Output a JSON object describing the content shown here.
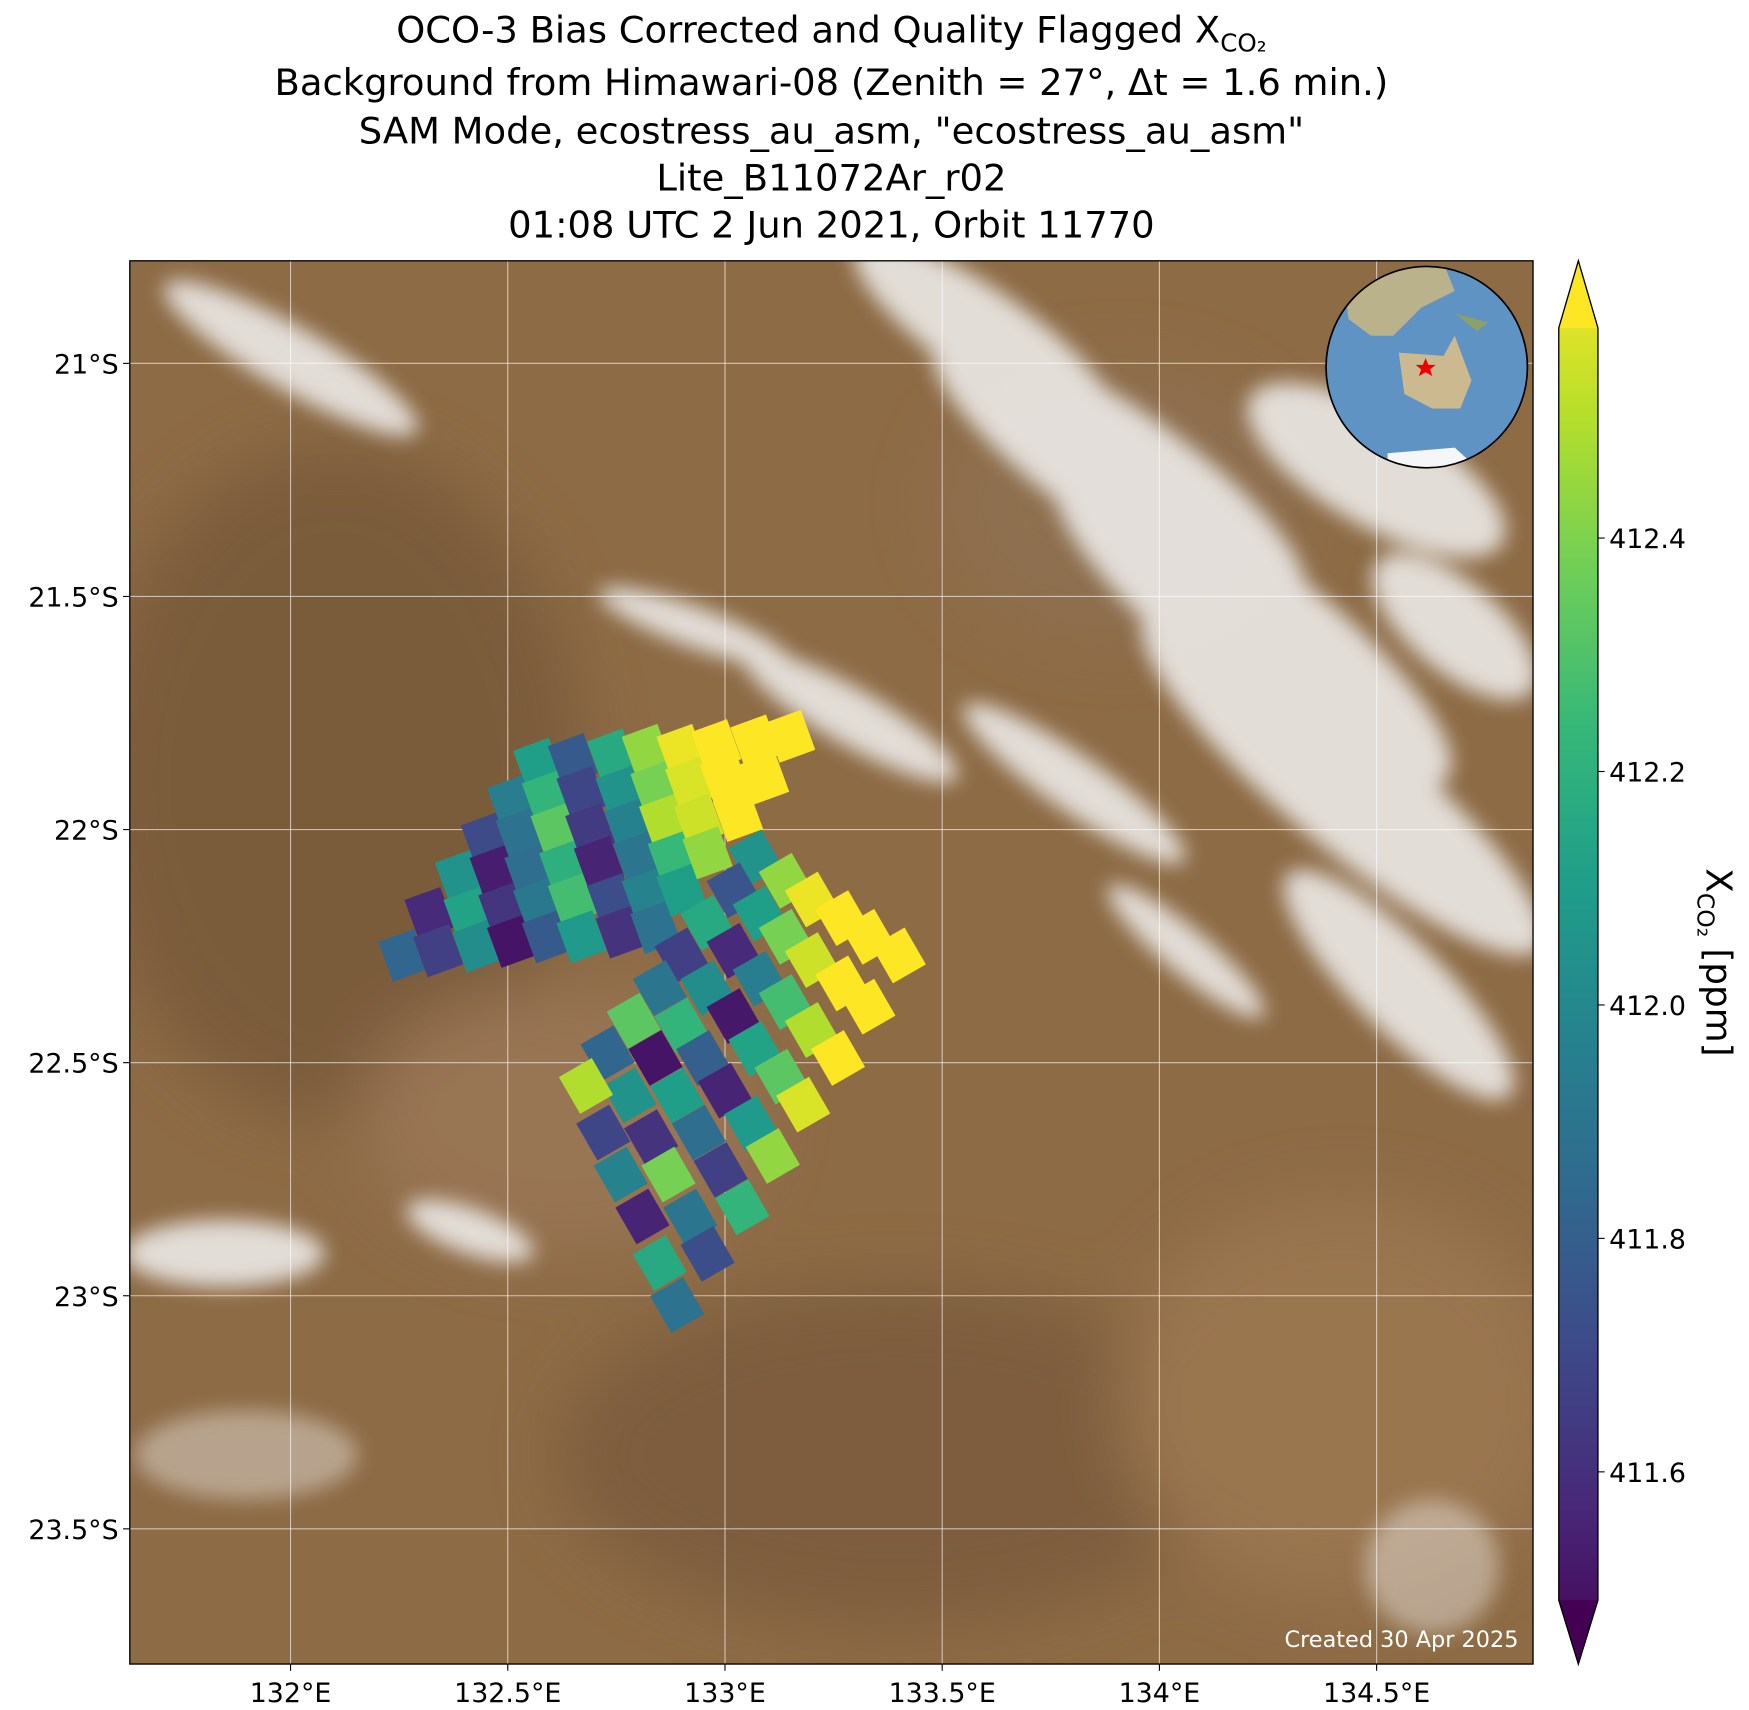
{
  "chart_data": {
    "type": "map",
    "title": [
      "OCO-3 Bias Corrected and Quality Flagged X",
      "Background from Himawari-08 (Zenith = 27°, Δt =  1.6 min.)",
      "SAM Mode, ecostress_au_asm, \"ecostress_au_asm\"",
      "Lite_B11072Ar_r02",
      "01:08 UTC 2 Jun 2021, Orbit 11770"
    ],
    "title_subscript": "CO₂",
    "xlim": [
      131.63,
      134.86
    ],
    "ylim": [
      -23.79,
      -20.78
    ],
    "xticks": [
      {
        "value": 132,
        "label": "132°E"
      },
      {
        "value": 132.5,
        "label": "132.5°E"
      },
      {
        "value": 133,
        "label": "133°E"
      },
      {
        "value": 133.5,
        "label": "133.5°E"
      },
      {
        "value": 134,
        "label": "134°E"
      },
      {
        "value": 134.5,
        "label": "134.5°E"
      }
    ],
    "yticks": [
      {
        "value": -21,
        "label": "21°S"
      },
      {
        "value": -21.5,
        "label": "21.5°S"
      },
      {
        "value": -22,
        "label": "22°S"
      },
      {
        "value": -22.5,
        "label": "22.5°S"
      },
      {
        "value": -23,
        "label": "23°S"
      },
      {
        "value": -23.5,
        "label": "23.5°S"
      }
    ],
    "grid": true,
    "series": [
      {
        "lon": [
          132.26,
          132.32,
          132.39,
          132.45,
          132.51,
          132.57,
          132.34,
          132.41,
          132.47,
          132.53,
          132.59,
          132.65,
          132.43,
          132.49,
          132.55,
          132.61,
          132.67,
          132.74,
          132.51,
          132.57,
          132.63,
          132.69,
          132.76,
          132.82,
          132.59,
          132.65,
          132.71,
          132.78,
          132.84,
          132.9,
          132.67,
          132.74,
          132.8,
          132.86,
          132.92,
          132.98,
          132.76,
          132.82,
          132.88,
          132.94,
          133.0,
          133.07,
          132.84,
          132.9,
          132.96,
          133.03,
          133.09,
          133.15
        ],
        "lat": [
          -22.27,
          -22.18,
          -22.1,
          -22.02,
          -21.94,
          -21.86,
          -22.26,
          -22.18,
          -22.09,
          -22.01,
          -21.93,
          -21.85,
          -22.25,
          -22.17,
          -22.09,
          -22.0,
          -21.92,
          -21.84,
          -22.24,
          -22.16,
          -22.08,
          -22.0,
          -21.92,
          -21.83,
          -22.23,
          -22.15,
          -22.07,
          -21.99,
          -21.91,
          -21.83,
          -22.23,
          -22.15,
          -22.06,
          -21.98,
          -21.9,
          -21.82,
          -22.22,
          -22.14,
          -22.06,
          -21.98,
          -21.89,
          -21.81,
          -22.21,
          -22.13,
          -22.05,
          -21.97,
          -21.89,
          -21.8
        ],
        "values": [
          411.85,
          411.62,
          412.05,
          411.74,
          411.95,
          412.1,
          411.7,
          412.12,
          411.58,
          411.9,
          412.2,
          411.8,
          412.02,
          411.66,
          411.88,
          412.3,
          411.72,
          412.15,
          411.55,
          411.93,
          412.18,
          411.68,
          412.05,
          412.4,
          411.8,
          412.25,
          411.6,
          411.97,
          412.35,
          412.55,
          412.08,
          411.75,
          411.92,
          412.45,
          412.52,
          412.58,
          411.65,
          411.98,
          412.22,
          412.5,
          412.58,
          412.58,
          411.9,
          412.1,
          412.4,
          412.58,
          412.58,
          412.58
        ]
      },
      {
        "lon": [
          133.07,
          133.14,
          133.2,
          133.27,
          133.33,
          133.4,
          133.02,
          133.08,
          133.14,
          133.2,
          133.27,
          133.33,
          132.96,
          133.02,
          133.08,
          133.14,
          133.2,
          133.26,
          132.9,
          132.96,
          133.02,
          133.07,
          133.13,
          133.18,
          132.85,
          132.9,
          132.95,
          133.0,
          133.06,
          133.11,
          132.79,
          132.84,
          132.89,
          132.94,
          132.99,
          133.04,
          132.73,
          132.78,
          132.83,
          132.87,
          132.92,
          132.96,
          132.68,
          132.72,
          132.76,
          132.81,
          132.85,
          132.89
        ],
        "lat": [
          -22.06,
          -22.11,
          -22.15,
          -22.19,
          -22.23,
          -22.27,
          -22.13,
          -22.18,
          -22.23,
          -22.28,
          -22.33,
          -22.38,
          -22.2,
          -22.26,
          -22.32,
          -22.37,
          -22.43,
          -22.49,
          -22.27,
          -22.34,
          -22.4,
          -22.47,
          -22.53,
          -22.59,
          -22.34,
          -22.42,
          -22.49,
          -22.56,
          -22.63,
          -22.7,
          -22.41,
          -22.49,
          -22.57,
          -22.65,
          -22.73,
          -22.81,
          -22.48,
          -22.57,
          -22.66,
          -22.74,
          -22.83,
          -22.91,
          -22.55,
          -22.65,
          -22.74,
          -22.83,
          -22.93,
          -23.02
        ],
        "values": [
          412.05,
          412.4,
          412.55,
          412.58,
          412.58,
          412.58,
          411.78,
          412.1,
          412.35,
          412.5,
          412.58,
          412.58,
          412.15,
          411.62,
          411.95,
          412.25,
          412.45,
          412.58,
          411.7,
          412.02,
          411.56,
          412.12,
          412.3,
          412.52,
          411.92,
          412.2,
          411.82,
          411.6,
          412.08,
          412.4,
          412.3,
          411.55,
          412.1,
          411.88,
          411.7,
          412.2,
          411.85,
          412.05,
          411.65,
          412.35,
          411.92,
          411.75,
          412.45,
          411.72,
          411.98,
          411.6,
          412.15,
          411.9
        ]
      }
    ],
    "colorbar": {
      "clim": [
        411.49,
        412.58
      ],
      "ticks": [
        411.6,
        411.8,
        {
          "value": 412,
          "label": "412.0"
        },
        412.2,
        412.4
      ],
      "label": "X",
      "label_subscript": "CO₂",
      "label_unit": "[ppm]"
    },
    "annotation": "Created 30 Apr 2025"
  }
}
